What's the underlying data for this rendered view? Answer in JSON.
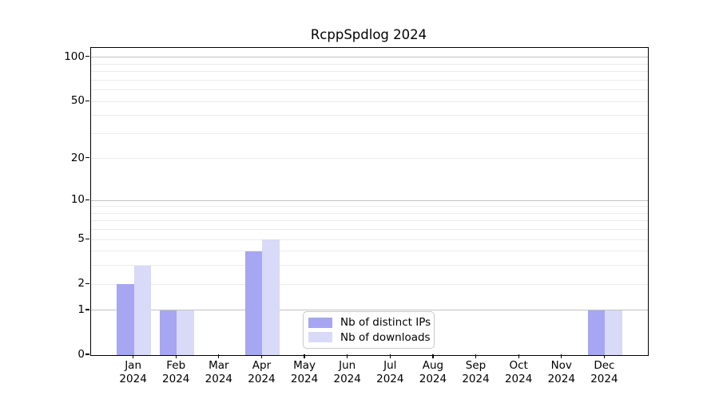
{
  "title": "RcppSpdlog 2024",
  "colors": {
    "distinct_ips_bar": "#a6a6f2",
    "downloads_bar": "#d9d9f8",
    "grid_minor": "#ebebeb",
    "grid_major": "#c2c2c2",
    "axis": "#000000",
    "legend_border": "#c9c9c9"
  },
  "chart_data": {
    "type": "bar",
    "title": "RcppSpdlog 2024",
    "categories": [
      "Jan 2024",
      "Feb 2024",
      "Mar 2024",
      "Apr 2024",
      "May 2024",
      "Jun 2024",
      "Jul 2024",
      "Aug 2024",
      "Sep 2024",
      "Oct 2024",
      "Nov 2024",
      "Dec 2024"
    ],
    "x_months": [
      "Jan",
      "Feb",
      "Mar",
      "Apr",
      "May",
      "Jun",
      "Jul",
      "Aug",
      "Sep",
      "Oct",
      "Nov",
      "Dec"
    ],
    "x_year": "2024",
    "series": [
      {
        "name": "Nb of distinct IPs",
        "color": "#a6a6f2",
        "values": [
          2,
          1,
          0,
          4,
          0,
          0,
          0,
          0,
          0,
          0,
          0,
          1
        ]
      },
      {
        "name": "Nb of downloads",
        "color": "#d9d9f8",
        "values": [
          3,
          1,
          0,
          5,
          0,
          0,
          0,
          0,
          0,
          0,
          0,
          1
        ]
      }
    ],
    "xlabel": "",
    "ylabel": "",
    "yscale": "log1p",
    "ylim": [
      0,
      116
    ],
    "yticks": [
      {
        "value": 0,
        "label": "0"
      },
      {
        "value": 1,
        "label": "1"
      },
      {
        "value": 2,
        "label": "2"
      },
      {
        "value": 5,
        "label": "5"
      },
      {
        "value": 10,
        "label": "10"
      },
      {
        "value": 20,
        "label": "20"
      },
      {
        "value": 50,
        "label": "50"
      },
      {
        "value": 100,
        "label": "100"
      }
    ],
    "grid": "horizontal",
    "grid_minor_values": [
      2,
      3,
      4,
      5,
      6,
      7,
      8,
      9,
      20,
      30,
      40,
      50,
      60,
      70,
      80,
      90
    ],
    "grid_major_values": [
      1,
      10,
      100
    ],
    "legend_position": "lower center"
  }
}
